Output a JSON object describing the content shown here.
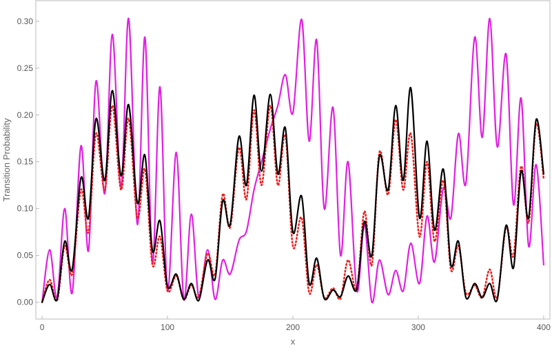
{
  "chart_data": {
    "type": "line",
    "title": "",
    "xlabel": "x",
    "ylabel": "Transition Probability",
    "xlim": [
      -5,
      405
    ],
    "ylim": [
      -0.018,
      0.322
    ],
    "x_ticks": [
      0,
      100,
      200,
      300,
      400
    ],
    "y_ticks": [
      0.0,
      0.05,
      0.1,
      0.15,
      0.2,
      0.25,
      0.3
    ],
    "x_tick_labels": [
      "0",
      "100",
      "200",
      "300",
      "400"
    ],
    "y_tick_labels": [
      "0.00",
      "0.05",
      "0.10",
      "0.15",
      "0.20",
      "0.25",
      "0.30"
    ],
    "grid": false,
    "frame": true,
    "series": [
      {
        "color": "#e020e0",
        "style": "solid",
        "x": [
          0,
          6,
          12,
          18,
          24,
          31,
          37,
          43,
          50,
          56,
          63,
          69,
          76,
          82,
          88,
          94,
          100,
          107,
          113,
          119,
          125,
          132,
          138,
          144,
          150,
          157,
          163,
          169,
          175,
          182,
          188,
          194,
          200,
          207,
          213,
          219,
          225,
          232,
          238,
          244,
          251,
          257,
          263,
          269,
          276,
          282,
          288,
          294,
          301,
          307,
          313,
          320,
          326,
          332,
          338,
          345,
          351,
          357,
          363,
          370,
          376,
          382,
          388,
          394,
          400
        ],
        "y": [
          0.0,
          0.056,
          0.005,
          0.1,
          0.01,
          0.167,
          0.055,
          0.236,
          0.116,
          0.286,
          0.123,
          0.303,
          0.083,
          0.283,
          0.042,
          0.23,
          0.013,
          0.16,
          0.003,
          0.094,
          0.005,
          0.056,
          0.003,
          0.045,
          0.03,
          0.066,
          0.076,
          0.12,
          0.15,
          0.185,
          0.21,
          0.243,
          0.202,
          0.302,
          0.172,
          0.28,
          0.1,
          0.208,
          0.05,
          0.15,
          0.012,
          0.083,
          0.0,
          0.045,
          0.008,
          0.034,
          0.012,
          0.063,
          0.02,
          0.092,
          0.043,
          0.122,
          0.09,
          0.18,
          0.127,
          0.283,
          0.176,
          0.303,
          0.166,
          0.265,
          0.104,
          0.218,
          0.06,
          0.147,
          0.04
        ]
      },
      {
        "color": "#ee2020",
        "style": "dotted",
        "x": [
          0,
          6,
          12,
          18,
          24,
          31,
          37,
          43,
          50,
          56,
          63,
          69,
          76,
          82,
          88,
          94,
          100,
          107,
          113,
          119,
          125,
          132,
          138,
          144,
          150,
          157,
          163,
          169,
          175,
          182,
          188,
          194,
          200,
          207,
          213,
          219,
          225,
          232,
          238,
          244,
          251,
          257,
          263,
          269,
          276,
          282,
          288,
          294,
          301,
          307,
          313,
          320,
          326,
          332,
          338,
          345,
          351,
          357,
          363,
          370,
          376,
          382,
          388,
          394,
          400
        ],
        "y": [
          0.0,
          0.024,
          0.002,
          0.06,
          0.03,
          0.12,
          0.075,
          0.18,
          0.12,
          0.21,
          0.12,
          0.196,
          0.09,
          0.142,
          0.04,
          0.07,
          0.012,
          0.028,
          0.003,
          0.018,
          0.006,
          0.052,
          0.03,
          0.115,
          0.08,
          0.165,
          0.11,
          0.205,
          0.125,
          0.21,
          0.125,
          0.178,
          0.06,
          0.09,
          0.01,
          0.04,
          0.005,
          0.015,
          0.004,
          0.045,
          0.014,
          0.097,
          0.04,
          0.16,
          0.115,
          0.195,
          0.12,
          0.18,
          0.07,
          0.15,
          0.065,
          0.13,
          0.035,
          0.06,
          0.01,
          0.018,
          0.005,
          0.035,
          0.005,
          0.08,
          0.05,
          0.145,
          0.085,
          0.19,
          0.132
        ]
      },
      {
        "color": "#000000",
        "style": "solid",
        "x": [
          0,
          6,
          12,
          18,
          24,
          31,
          37,
          43,
          50,
          56,
          63,
          69,
          76,
          82,
          88,
          94,
          100,
          107,
          113,
          119,
          125,
          132,
          138,
          144,
          150,
          157,
          163,
          169,
          175,
          182,
          188,
          194,
          200,
          207,
          213,
          219,
          225,
          232,
          238,
          244,
          251,
          257,
          263,
          269,
          276,
          282,
          288,
          294,
          301,
          307,
          313,
          320,
          326,
          332,
          338,
          345,
          351,
          357,
          363,
          370,
          376,
          382,
          388,
          394,
          400
        ],
        "y": [
          0.0,
          0.019,
          0.003,
          0.065,
          0.035,
          0.133,
          0.09,
          0.196,
          0.13,
          0.226,
          0.135,
          0.211,
          0.106,
          0.157,
          0.055,
          0.087,
          0.017,
          0.03,
          0.003,
          0.02,
          0.002,
          0.045,
          0.025,
          0.108,
          0.083,
          0.177,
          0.125,
          0.221,
          0.14,
          0.222,
          0.137,
          0.186,
          0.075,
          0.113,
          0.02,
          0.047,
          0.004,
          0.013,
          0.006,
          0.028,
          0.014,
          0.086,
          0.05,
          0.156,
          0.12,
          0.21,
          0.13,
          0.229,
          0.09,
          0.172,
          0.077,
          0.142,
          0.04,
          0.065,
          0.005,
          0.02,
          0.005,
          0.02,
          0.003,
          0.082,
          0.037,
          0.14,
          0.09,
          0.195,
          0.137
        ]
      }
    ]
  }
}
